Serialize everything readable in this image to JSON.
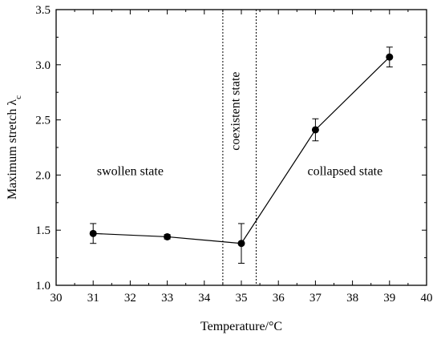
{
  "chart_data": {
    "type": "scatter",
    "title": "",
    "xlabel": "Temperature/°C",
    "ylabel": "Maximum stretch λ",
    "ylabel_subscript": "c",
    "xlim": [
      30,
      40
    ],
    "ylim": [
      1.0,
      3.5
    ],
    "xticks": [
      30,
      31,
      32,
      33,
      34,
      35,
      36,
      37,
      38,
      39,
      40
    ],
    "yticks": [
      1.0,
      1.5,
      2.0,
      2.5,
      3.0,
      3.5
    ],
    "grid": false,
    "legend": "none",
    "series": [
      {
        "x": [
          31,
          33,
          35,
          37,
          39
        ],
        "y": [
          1.47,
          1.44,
          1.38,
          2.41,
          3.07
        ],
        "error": [
          0.09,
          0.02,
          0.18,
          0.1,
          0.09
        ],
        "line": true,
        "marker": "circle",
        "color": "#000000"
      }
    ],
    "vlines": [
      {
        "x": 34.5,
        "style": "dotted"
      },
      {
        "x": 35.4,
        "style": "dotted"
      }
    ],
    "annotations": [
      {
        "text": "swollen state",
        "x": 32.0,
        "y": 2.0
      },
      {
        "text": "coexistent state",
        "x": 34.95,
        "y": 2.58,
        "rotation": -90
      },
      {
        "text": "collapsed state",
        "x": 37.8,
        "y": 2.0
      }
    ]
  }
}
